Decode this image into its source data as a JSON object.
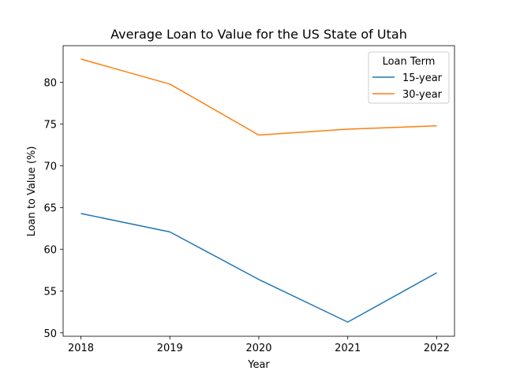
{
  "chart_data": {
    "type": "line",
    "title": "Average Loan to Value for the US State of Utah",
    "xlabel": "Year",
    "ylabel": "Loan to Value (%)",
    "x": [
      2018,
      2019,
      2020,
      2021,
      2022
    ],
    "x_tick_labels": [
      "2018",
      "2019",
      "2020",
      "2021",
      "2022"
    ],
    "y_ticks": [
      50,
      55,
      60,
      65,
      70,
      75,
      80
    ],
    "y_tick_labels": [
      "50",
      "55",
      "60",
      "65",
      "70",
      "75",
      "80"
    ],
    "ylim": [
      49.6,
      84.4
    ],
    "xlim": [
      2017.8,
      2022.2
    ],
    "legend": {
      "title": "Loan Term",
      "placement": "upper right"
    },
    "series": [
      {
        "name": "15-year",
        "color": "#1f77b4",
        "values": [
          64.3,
          62.1,
          56.4,
          51.3,
          57.2
        ]
      },
      {
        "name": "30-year",
        "color": "#ff7f0e",
        "values": [
          82.8,
          79.8,
          73.7,
          74.4,
          74.8
        ]
      }
    ]
  }
}
